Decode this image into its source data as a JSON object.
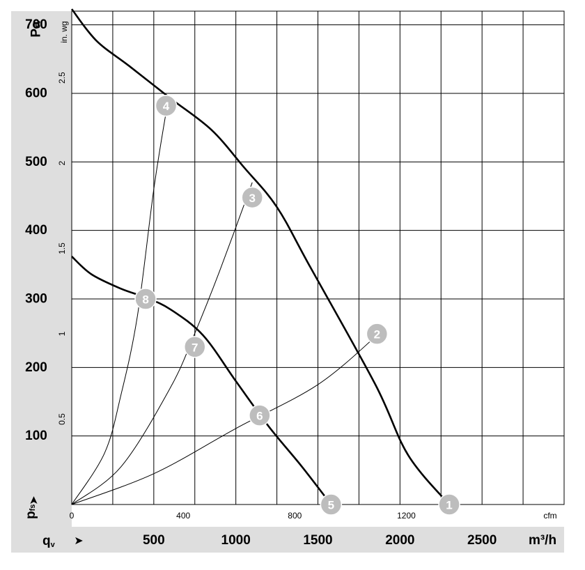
{
  "chart_data": {
    "type": "line",
    "left_axis": {
      "unit": "Pa",
      "ticks": [
        100,
        200,
        300,
        400,
        500,
        600,
        700
      ],
      "range": [
        0,
        720
      ],
      "symbol_main": "p",
      "symbol_sub": "fs",
      "arrow": "➤"
    },
    "right_inner_axis": {
      "unit": "in. wg",
      "ticks": [
        "0.5",
        "1",
        "1.5",
        "2",
        "2.5"
      ],
      "values": [
        0.5,
        1,
        1.5,
        2,
        2.5
      ]
    },
    "bottom_axis": {
      "symbol_main": "q",
      "symbol_sub": "v",
      "arrow": "➤",
      "unit": "m³/h",
      "ticks": [
        500,
        1000,
        1500,
        2000,
        2500
      ],
      "range": [
        0,
        3000
      ]
    },
    "bottom_inner_axis": {
      "unit": "cfm",
      "ticks": [
        "0",
        "400",
        "800",
        "1200"
      ],
      "values": [
        0,
        400,
        800,
        1200
      ]
    },
    "grid": true,
    "series": [
      {
        "id": "curve-upper",
        "points": [
          [
            0,
            723
          ],
          [
            150,
            677
          ],
          [
            350,
            640
          ],
          [
            600,
            593
          ],
          [
            850,
            547
          ],
          [
            1050,
            492
          ],
          [
            1250,
            434
          ],
          [
            1450,
            348
          ],
          [
            1850,
            175
          ],
          [
            2050,
            72
          ],
          [
            2300,
            0
          ]
        ]
      },
      {
        "id": "curve-lower",
        "points": [
          [
            0,
            362
          ],
          [
            120,
            336
          ],
          [
            300,
            315
          ],
          [
            450,
            302
          ],
          [
            600,
            285
          ],
          [
            800,
            247
          ],
          [
            1000,
            180
          ],
          [
            1200,
            114
          ],
          [
            1400,
            56
          ],
          [
            1580,
            0
          ]
        ]
      },
      {
        "id": "system-line-steep",
        "points": [
          [
            0,
            0
          ],
          [
            200,
            75
          ],
          [
            300,
            160
          ],
          [
            400,
            275
          ],
          [
            500,
            460
          ],
          [
            580,
            580
          ]
        ]
      },
      {
        "id": "system-line-mid",
        "points": [
          [
            0,
            0
          ],
          [
            300,
            55
          ],
          [
            600,
            170
          ],
          [
            750,
            250
          ],
          [
            900,
            340
          ],
          [
            1100,
            470
          ]
        ]
      },
      {
        "id": "system-line-flat",
        "points": [
          [
            0,
            0
          ],
          [
            500,
            45
          ],
          [
            1000,
            111
          ],
          [
            1500,
            175
          ],
          [
            1870,
            249
          ]
        ]
      }
    ],
    "operating_points": [
      {
        "label": "1",
        "x": 2300,
        "y": 0
      },
      {
        "label": "2",
        "x": 1860,
        "y": 249
      },
      {
        "label": "3",
        "x": 1100,
        "y": 448
      },
      {
        "label": "4",
        "x": 575,
        "y": 582
      },
      {
        "label": "5",
        "x": 1580,
        "y": 0
      },
      {
        "label": "6",
        "x": 1145,
        "y": 130
      },
      {
        "label": "7",
        "x": 750,
        "y": 230
      },
      {
        "label": "8",
        "x": 450,
        "y": 300
      }
    ]
  }
}
